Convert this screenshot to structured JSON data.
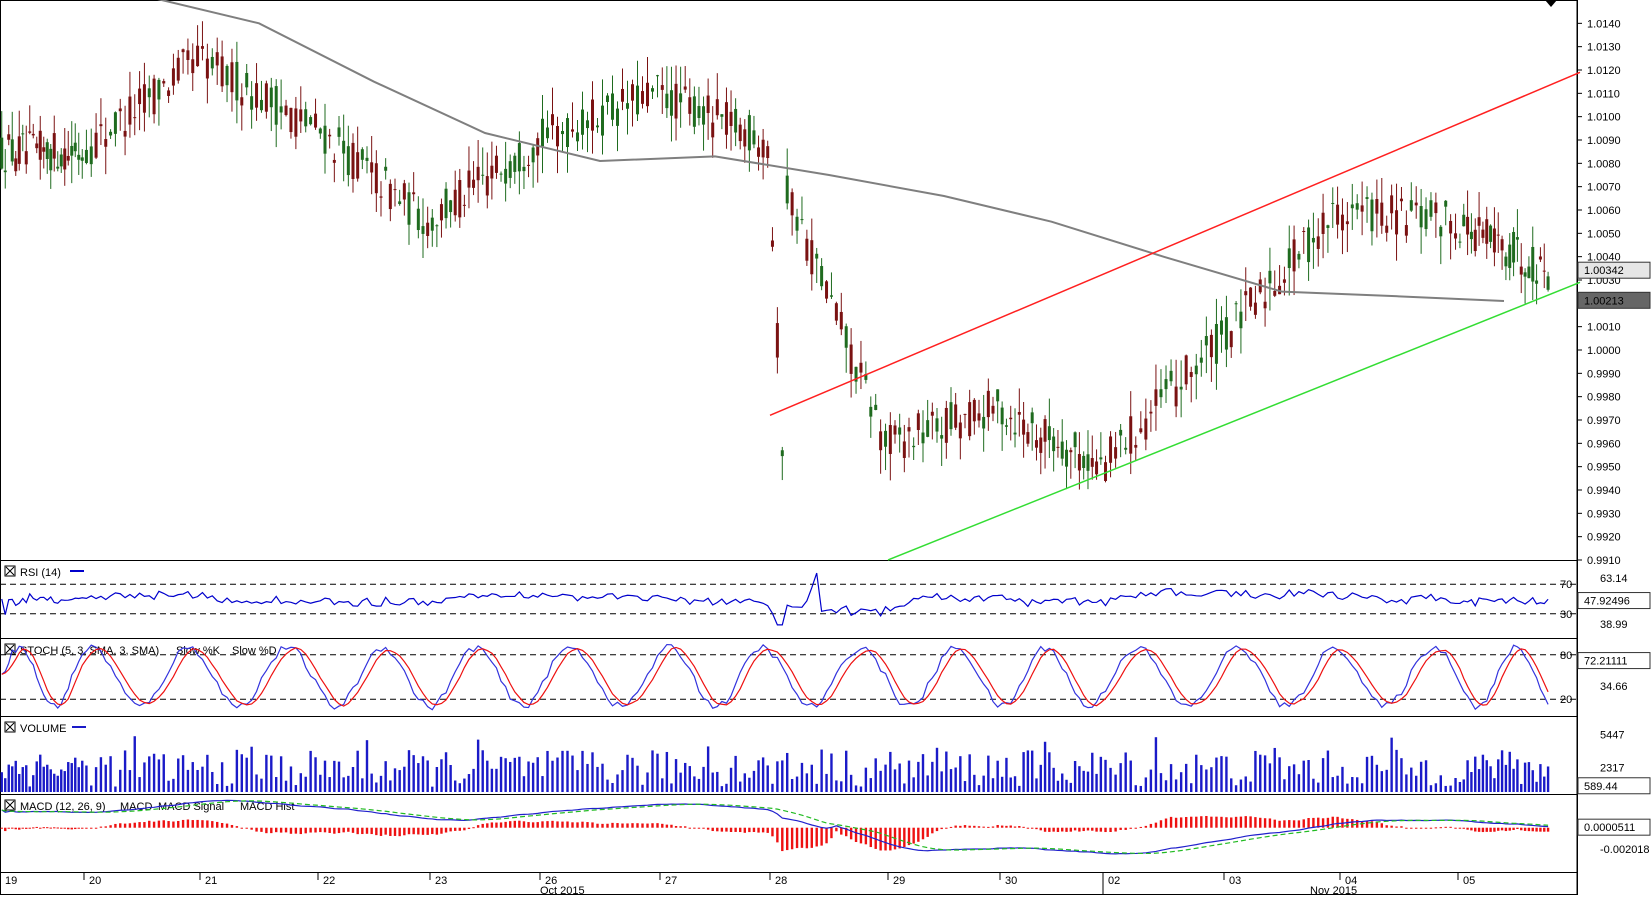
{
  "chart_data": {
    "type": "candlestick",
    "instrument_note": "",
    "price_axis": {
      "ticks": [
        "1.0140",
        "1.0130",
        "1.0120",
        "1.0110",
        "1.0100",
        "1.0090",
        "1.0080",
        "1.0070",
        "1.0060",
        "1.0050",
        "1.0040",
        "1.0030",
        "1.0010",
        "1.0000",
        "0.9990",
        "0.9980",
        "0.9970",
        "0.9960",
        "0.9950",
        "0.9940",
        "0.9930",
        "0.9920",
        "0.9910"
      ],
      "ylim": [
        0.991,
        1.015
      ],
      "last_price_label": "1.00342",
      "ma_price_label": "1.00213"
    },
    "time_axis": {
      "day_labels": [
        "19",
        "20",
        "21",
        "22",
        "23",
        "26",
        "27",
        "28",
        "29",
        "30",
        "02",
        "03",
        "04",
        "05"
      ],
      "month_labels": [
        "Oct 2015",
        "Nov 2015"
      ]
    },
    "key_closes": [
      {
        "day": "19",
        "close": 1.0085
      },
      {
        "day": "20",
        "close": 1.0125
      },
      {
        "day": "21",
        "close": 1.0095
      },
      {
        "day": "22",
        "close": 1.0055
      },
      {
        "day": "23",
        "close": 1.009
      },
      {
        "day": "26",
        "close": 1.011
      },
      {
        "day": "27",
        "close": 1.009
      },
      {
        "day": "28",
        "close": 0.996
      },
      {
        "day": "29",
        "close": 0.9975
      },
      {
        "day": "30",
        "close": 0.995
      },
      {
        "day": "02",
        "close": 1.0005
      },
      {
        "day": "03",
        "close": 1.006
      },
      {
        "day": "04",
        "close": 1.0055
      },
      {
        "day": "05",
        "close": 1.0034
      }
    ],
    "moving_average": [
      {
        "day": "19",
        "value": 1.0155
      },
      {
        "day": "20",
        "value": 1.0152
      },
      {
        "day": "21",
        "value": 1.014
      },
      {
        "day": "22",
        "value": 1.0115
      },
      {
        "day": "23",
        "value": 1.0093
      },
      {
        "day": "26",
        "value": 1.0081
      },
      {
        "day": "27",
        "value": 1.0083
      },
      {
        "day": "28",
        "value": 1.0075
      },
      {
        "day": "29",
        "value": 1.0066
      },
      {
        "day": "30",
        "value": 1.0055
      },
      {
        "day": "02",
        "value": 1.004
      },
      {
        "day": "03",
        "value": 1.0025
      },
      {
        "day": "04",
        "value": 1.0023
      },
      {
        "day": "05",
        "value": 1.0021
      }
    ],
    "channel": {
      "upper": {
        "start": {
          "day": "28",
          "value": 0.9972
        },
        "end": {
          "day": "05",
          "value": 1.0119
        }
      },
      "lower": {
        "start": {
          "day": "29",
          "value": 0.991
        },
        "end": {
          "day": "05",
          "value": 1.0029
        }
      }
    },
    "indicators": {
      "rsi": {
        "label": "RSI (14)",
        "levels": [
          "70",
          "30"
        ],
        "side_labels": [
          "63.14",
          "38.99"
        ],
        "value_label": "47.92496",
        "current": 47.9
      },
      "stoch": {
        "label": "STOCH (5, 3, SMA, 3, SMA)",
        "series": [
          "Slow %K",
          "Slow %D"
        ],
        "levels": [
          "80",
          "20"
        ],
        "side_labels": [
          "34.66"
        ],
        "value_label": "72.21111",
        "current": 72.2
      },
      "volume": {
        "label": "VOLUME",
        "ticks": [
          "5447",
          "2317"
        ],
        "value_label": "589.44",
        "current": 589.44
      },
      "macd": {
        "label": "MACD (12, 26, 9)",
        "series": [
          "MACD",
          "MACD Signal",
          "MACD Hist"
        ],
        "ticks": [
          "-0.002018"
        ],
        "value_label": "0.0000511"
      }
    },
    "colors": {
      "bull": "#1f6b1f",
      "bear": "#7a1212",
      "ma": "#7f7f7f",
      "channel_upper": "#ff2020",
      "channel_lower": "#33dd33",
      "rsi": "#0000cc",
      "stoch_k": "#3333dd",
      "stoch_d": "#ee1111",
      "volume": "#1a1ac8",
      "macd": "#2020cc",
      "macd_signal": "#22bb22",
      "macd_hist": "#ee1111"
    }
  }
}
